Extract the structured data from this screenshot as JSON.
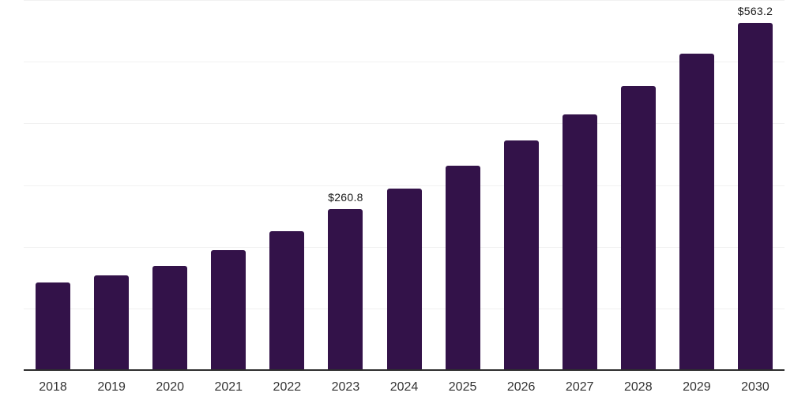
{
  "chart_data": {
    "type": "bar",
    "categories": [
      "2018",
      "2019",
      "2020",
      "2021",
      "2022",
      "2023",
      "2024",
      "2025",
      "2026",
      "2027",
      "2028",
      "2029",
      "2030"
    ],
    "values": [
      142,
      154,
      169,
      195,
      225,
      260.8,
      294,
      331,
      372,
      414,
      461,
      513,
      563.2
    ],
    "point_labels": [
      "",
      "",
      "",
      "",
      "",
      "$260.8",
      "",
      "",
      "",
      "",
      "",
      "",
      "$563.2"
    ],
    "title": "",
    "xlabel": "",
    "ylabel": "",
    "ylim": [
      0,
      600
    ],
    "gridline_step": 100,
    "grid": "horizontal",
    "legend": "none",
    "y_axis_labels_visible": false,
    "colors": {
      "bar": "#331249",
      "gridline": "#f1f1f1",
      "axis_line": "#2e2e2e",
      "value_label": "#1a1a1a",
      "tick_label": "#333333",
      "background": "#ffffff"
    }
  }
}
